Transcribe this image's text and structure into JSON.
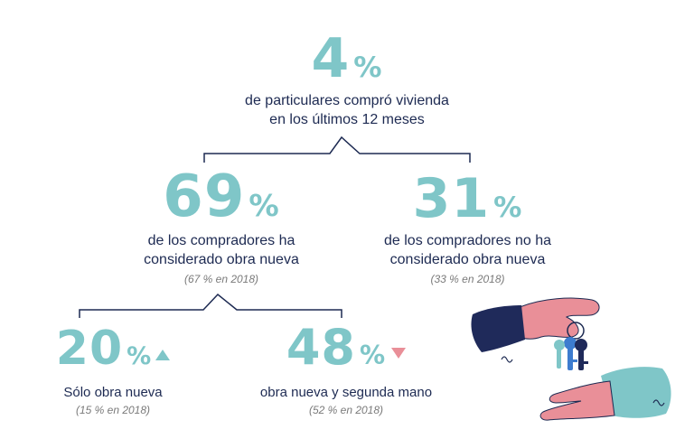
{
  "top": {
    "number": "4",
    "percent_sign": "%",
    "line1": "de particulares compró vivienda",
    "line2": "en los últimos 12 meses"
  },
  "left": {
    "number": "69",
    "percent_sign": "%",
    "line1": "de los compradores ha",
    "line2": "considerado obra nueva",
    "note": "(67 % en 2018)"
  },
  "right": {
    "number": "31",
    "percent_sign": "%",
    "line1": "de los compradores no ha",
    "line2": "considerado obra nueva",
    "note": "(33 % en 2018)"
  },
  "bottom_left": {
    "number": "20",
    "percent_sign": "%",
    "label": "Sólo obra nueva",
    "note": "(15 % en 2018)",
    "trend": "up"
  },
  "bottom_right": {
    "number": "48",
    "percent_sign": "%",
    "label": "obra nueva y segunda mano",
    "note": "(52 % en 2018)",
    "trend": "down"
  },
  "colors": {
    "accent_teal": "#7fc6c8",
    "text_navy": "#1d2a52",
    "note_gray": "#7a7a7a",
    "trend_down_pink": "#e98f98",
    "sleeve_navy": "#1f2a5a",
    "skin_pink": "#e98f98",
    "key_blue": "#3d7ccf"
  },
  "illustration": {
    "icon": "hands-exchanging-keys-icon"
  }
}
